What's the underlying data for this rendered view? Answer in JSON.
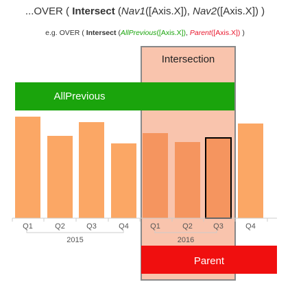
{
  "formula": {
    "prefix": "...OVER ( ",
    "keyword": "Intersect",
    "open": " (",
    "nav1": "Nav1",
    "arg1": "([Axis.X]), ",
    "nav2": "Nav2",
    "arg2": "([Axis.X]) )"
  },
  "example": {
    "prefix": "e.g. OVER ( ",
    "keyword": "Intersect",
    "open": " (",
    "nav1": "AllPrevious",
    "arg1": "([Axis.X])",
    "sep": ", ",
    "nav2": "Parent",
    "arg2": "([Axis.X])",
    "close": " )"
  },
  "labels": {
    "intersection": "Intersection",
    "all_previous": "AllPrevious",
    "parent": "Parent"
  },
  "colors": {
    "bar": "#fba765",
    "bar_in_intersection": "#f5955f",
    "intersection_fill": "#f9c4ad",
    "intersection_border": "#888888",
    "all_previous": "#1aa40c",
    "parent": "#f00f0f",
    "selected_border": "#000000",
    "axis": "#cccccc",
    "axis_text": "#555555"
  },
  "chart_data": {
    "type": "bar",
    "groups": [
      "2015",
      "2016"
    ],
    "categories": [
      "Q1",
      "Q2",
      "Q3",
      "Q4",
      "Q1",
      "Q2",
      "Q3",
      "Q4"
    ],
    "category_group": [
      "2015",
      "2015",
      "2015",
      "2015",
      "2016",
      "2016",
      "2016",
      "2016"
    ],
    "values": [
      148,
      120,
      140,
      109,
      124,
      111,
      117,
      138
    ],
    "selected_index": 6,
    "intersection_indices": [
      4,
      5,
      6
    ],
    "ylim": [
      0,
      175
    ]
  }
}
